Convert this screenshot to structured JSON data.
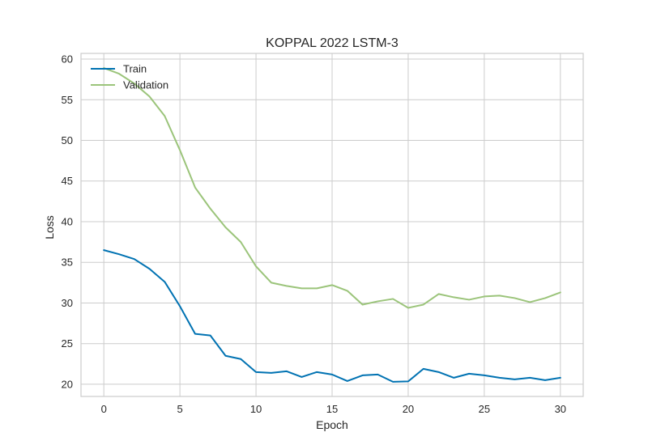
{
  "chart_data": {
    "type": "line",
    "title": "KOPPAL 2022 LSTM-3",
    "xlabel": "Epoch",
    "ylabel": "Loss",
    "xlim": [
      -1.5,
      31.5
    ],
    "ylim": [
      18.5,
      60.7
    ],
    "xticks": [
      0,
      5,
      10,
      15,
      20,
      25,
      30
    ],
    "yticks": [
      20,
      25,
      30,
      35,
      40,
      45,
      50,
      55,
      60
    ],
    "grid": true,
    "legend_position": "top-left",
    "x": [
      0,
      1,
      2,
      3,
      4,
      5,
      6,
      7,
      8,
      9,
      10,
      11,
      12,
      13,
      14,
      15,
      16,
      17,
      18,
      19,
      20,
      21,
      22,
      23,
      24,
      25,
      26,
      27,
      28,
      29,
      30
    ],
    "series": [
      {
        "name": "Train",
        "color": "#0072b2",
        "values": [
          36.5,
          36.0,
          35.4,
          34.2,
          32.6,
          29.6,
          26.2,
          26.0,
          23.5,
          23.1,
          21.5,
          21.4,
          21.6,
          20.9,
          21.5,
          21.2,
          20.4,
          21.1,
          21.2,
          20.3,
          20.35,
          21.9,
          21.5,
          20.8,
          21.3,
          21.1,
          20.8,
          20.6,
          20.8,
          20.5,
          20.8
        ]
      },
      {
        "name": "Validation",
        "color": "#9bc47a",
        "values": [
          58.9,
          58.2,
          57.0,
          55.4,
          53.0,
          48.8,
          44.2,
          41.6,
          39.3,
          37.5,
          34.5,
          32.5,
          32.1,
          31.8,
          31.8,
          32.2,
          31.5,
          29.8,
          30.2,
          30.5,
          29.4,
          29.8,
          31.1,
          30.7,
          30.4,
          30.8,
          30.9,
          30.6,
          30.1,
          30.6,
          31.3
        ]
      }
    ]
  }
}
